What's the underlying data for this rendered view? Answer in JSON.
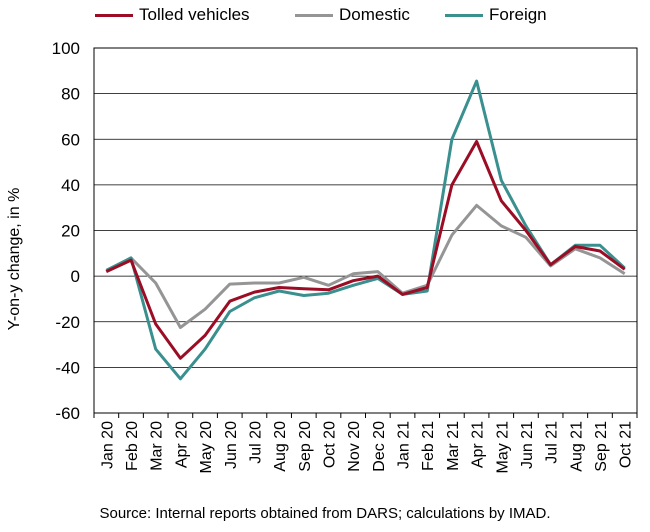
{
  "chart_data": {
    "type": "line",
    "title": "",
    "xlabel": "",
    "ylabel": "Y-on-y change, in %",
    "ylim": [
      -60,
      100
    ],
    "yticks": [
      -60,
      -40,
      -20,
      0,
      20,
      40,
      60,
      80,
      100
    ],
    "grid": true,
    "legend_position": "top",
    "categories": [
      "Jan 20",
      "Feb 20",
      "Mar 20",
      "Apr 20",
      "May 20",
      "Jun 20",
      "Jul 20",
      "Aug 20",
      "Sep 20",
      "Oct 20",
      "Nov 20",
      "Dec 20",
      "Jan 21",
      "Feb 21",
      "Mar 21",
      "Apr 21",
      "May 21",
      "Jun 21",
      "Jul 21",
      "Aug 21",
      "Sep 21",
      "Oct 21"
    ],
    "series": [
      {
        "name": "Tolled vehicles",
        "color": "#9b0d24",
        "values": [
          2,
          7,
          -21,
          -36,
          -26,
          -11,
          -7,
          -5,
          -5.5,
          -6,
          -2,
          0,
          -8,
          -5,
          40,
          59,
          33,
          20,
          5,
          13,
          11,
          3
        ]
      },
      {
        "name": "Domestic",
        "color": "#959595",
        "values": [
          2,
          8,
          -3,
          -22.5,
          -14.5,
          -3.5,
          -3,
          -3,
          -0.5,
          -4,
          1,
          2,
          -7.5,
          -4,
          18,
          31,
          22,
          17,
          4.5,
          12,
          8,
          1
        ]
      },
      {
        "name": "Foreign",
        "color": "#3a8f8f",
        "values": [
          2.5,
          8,
          -32,
          -45,
          -32,
          -15.5,
          -9.5,
          -6.5,
          -8.5,
          -7.5,
          -4,
          -1,
          -8,
          -6.5,
          60,
          85.5,
          42,
          22,
          5,
          13.5,
          13.5,
          3.5
        ]
      }
    ]
  },
  "source": "Source: Internal reports obtained from DARS; calculations by IMAD."
}
